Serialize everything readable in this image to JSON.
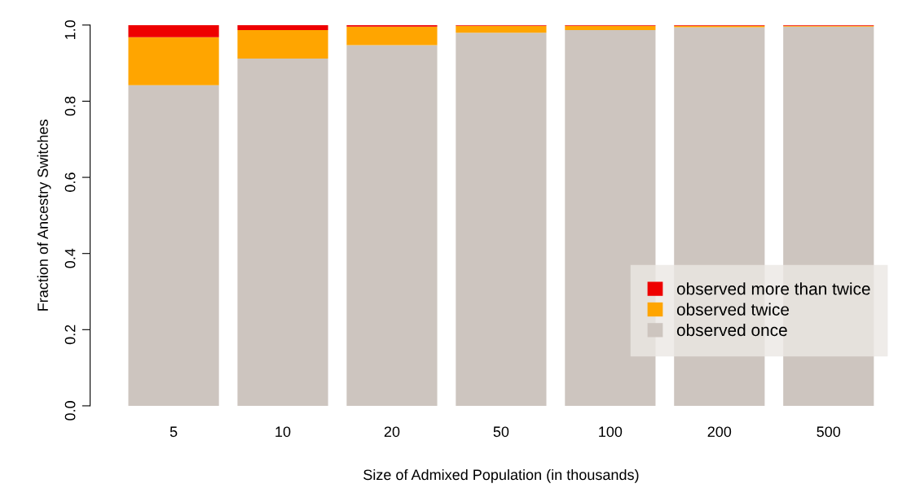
{
  "chart_data": {
    "type": "bar",
    "stacked": true,
    "xlabel": "Size of Admixed Population (in thousands)",
    "ylabel": "Fraction of Ancestry Switches",
    "categories": [
      "5",
      "10",
      "20",
      "50",
      "100",
      "200",
      "500"
    ],
    "series": [
      {
        "name": "observed once",
        "color": "#cdc5bf",
        "values": [
          0.842,
          0.912,
          0.947,
          0.98,
          0.987,
          0.994,
          0.996
        ]
      },
      {
        "name": "observed twice",
        "color": "#ffa500",
        "values": [
          0.126,
          0.075,
          0.049,
          0.018,
          0.011,
          0.004,
          0.002
        ]
      },
      {
        "name": "observed more than twice",
        "color": "#ee0000",
        "values": [
          0.032,
          0.013,
          0.004,
          0.002,
          0.002,
          0.002,
          0.002
        ]
      }
    ],
    "ylim": [
      0,
      1
    ],
    "yticks": [
      {
        "value": 0,
        "label": "0.0"
      },
      {
        "value": 0.2,
        "label": "0.2"
      },
      {
        "value": 0.4,
        "label": "0.4"
      },
      {
        "value": 0.6,
        "label": "0.6"
      },
      {
        "value": 0.8,
        "label": "0.8"
      },
      {
        "value": 1,
        "label": "1.0"
      }
    ],
    "grid": false,
    "legend": "right"
  }
}
